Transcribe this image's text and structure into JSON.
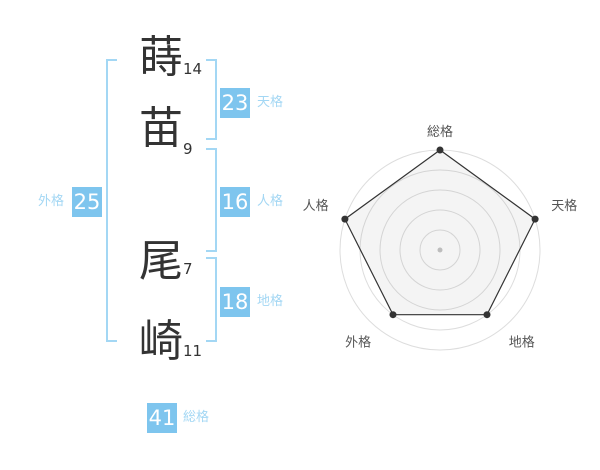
{
  "page": {
    "background": "#ffffff"
  },
  "name": {
    "characters": [
      {
        "char": "蒔",
        "strokes": 14
      },
      {
        "char": "苗",
        "strokes": 9
      },
      {
        "char": "尾",
        "strokes": 7
      },
      {
        "char": "崎",
        "strokes": 11
      }
    ]
  },
  "kaku": {
    "tenkaku": {
      "label": "天格",
      "value": 23
    },
    "jinkaku": {
      "label": "人格",
      "value": 16
    },
    "chikaku": {
      "label": "地格",
      "value": 18
    },
    "gaikaku": {
      "label": "外格",
      "value": 25
    },
    "soukaku": {
      "label": "総格",
      "value": 41
    }
  },
  "colors": {
    "badge_bg": "#7ec5ee",
    "badge_text": "#ffffff",
    "kaku_label_text": "#a3d7f4",
    "bracket_line": "#a3d7f4",
    "character_text": "#333333",
    "stroke_count_text": "#333333",
    "radar_label_text": "#555555"
  },
  "chart_data": {
    "type": "radar",
    "axes": [
      "総格",
      "天格",
      "地格",
      "外格",
      "人格"
    ],
    "values": [
      5,
      5,
      4,
      4,
      5
    ],
    "max": 5,
    "rings": 5,
    "grid": true,
    "legend": false,
    "grid_color": "#dddddd",
    "fill_color": "rgba(120,120,120,0.08)",
    "stroke_color": "#333333",
    "point_color": "#333333",
    "center_dot_color": "#c4c4c4"
  }
}
